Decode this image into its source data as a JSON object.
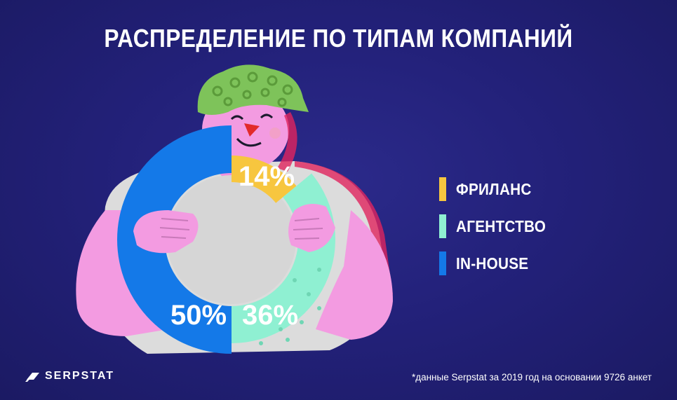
{
  "title": "РАСПРЕДЕЛЕНИЕ ПО ТИПАМ КОМПАНИЙ",
  "chart_data": {
    "type": "pie",
    "title": "РАСПРЕДЕЛЕНИЕ ПО ТИПАМ КОМПАНИЙ",
    "categories": [
      "ФРИЛАНС",
      "АГЕНТСТВО",
      "IN-HOUSE"
    ],
    "values": [
      14,
      36,
      50
    ],
    "value_labels": [
      "14%",
      "36%",
      "50%"
    ],
    "colors": [
      "#f7c63f",
      "#8ff0d2",
      "#1479e8"
    ],
    "legend_position": "right",
    "style": "donut"
  },
  "legend": [
    {
      "label": "ФРИЛАНС",
      "color": "#f7c63f"
    },
    {
      "label": "АГЕНТСТВО",
      "color": "#8ff0d2"
    },
    {
      "label": "IN-HOUSE",
      "color": "#1479e8"
    }
  ],
  "logo": {
    "text": "SERPSTAT",
    "icon": "serpstat-logo-icon"
  },
  "footnote": "*данные Serpstat за 2019 год на основании 9726 анкет"
}
